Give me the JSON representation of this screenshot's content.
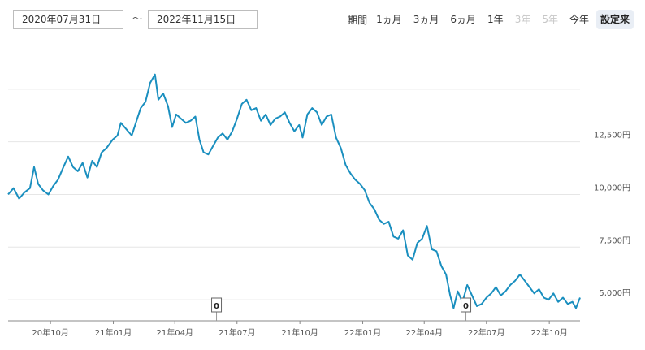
{
  "range": {
    "from": "2020年07月31日",
    "separator": "～",
    "to": "2022年11月15日"
  },
  "period": {
    "label": "期間",
    "buttons": [
      {
        "label": "1ヵ月",
        "state": "normal"
      },
      {
        "label": "3ヵ月",
        "state": "normal"
      },
      {
        "label": "6ヵ月",
        "state": "normal"
      },
      {
        "label": "1年",
        "state": "normal"
      },
      {
        "label": "3年",
        "state": "disabled"
      },
      {
        "label": "5年",
        "state": "disabled"
      },
      {
        "label": "今年",
        "state": "normal"
      },
      {
        "label": "設定来",
        "state": "active"
      }
    ]
  },
  "colors": {
    "line": "#1a8fbf",
    "grid": "#e6e6e6",
    "axis": "#888888",
    "active_button": "#e9eef5"
  },
  "chart_data": {
    "type": "line",
    "x_range": [
      "2020-07-31",
      "2022-11-15"
    ],
    "y_range": [
      4000,
      17500
    ],
    "x_ticks": [
      {
        "date": "2020-10-01",
        "label": "20年10月"
      },
      {
        "date": "2021-01-01",
        "label": "21年01月"
      },
      {
        "date": "2021-04-01",
        "label": "21年04月"
      },
      {
        "date": "2021-07-01",
        "label": "21年07月"
      },
      {
        "date": "2021-10-01",
        "label": "21年10月"
      },
      {
        "date": "2022-01-01",
        "label": "22年01月"
      },
      {
        "date": "2022-04-01",
        "label": "22年04月"
      },
      {
        "date": "2022-07-01",
        "label": "22年07月"
      },
      {
        "date": "2022-10-01",
        "label": "22年10月"
      }
    ],
    "y_ticks": [
      {
        "value": 5000,
        "label": "5,000円"
      },
      {
        "value": 7500,
        "label": "7,500円"
      },
      {
        "value": 10000,
        "label": "10,000円"
      },
      {
        "value": 12500,
        "label": "12,500円"
      },
      {
        "value": 15000,
        "label": ""
      }
    ],
    "markers": [
      {
        "date": "2021-06-01",
        "label": "0"
      },
      {
        "date": "2022-06-01",
        "label": "0"
      }
    ],
    "series": [
      {
        "points": [
          [
            "2020-07-31",
            10000
          ],
          [
            "2020-08-08",
            10300
          ],
          [
            "2020-08-16",
            9800
          ],
          [
            "2020-08-24",
            10100
          ],
          [
            "2020-09-01",
            10300
          ],
          [
            "2020-09-07",
            11300
          ],
          [
            "2020-09-13",
            10500
          ],
          [
            "2020-09-20",
            10200
          ],
          [
            "2020-09-28",
            10000
          ],
          [
            "2020-10-05",
            10400
          ],
          [
            "2020-10-12",
            10700
          ],
          [
            "2020-10-20",
            11300
          ],
          [
            "2020-10-27",
            11800
          ],
          [
            "2020-11-03",
            11300
          ],
          [
            "2020-11-10",
            11100
          ],
          [
            "2020-11-17",
            11500
          ],
          [
            "2020-11-24",
            10800
          ],
          [
            "2020-12-01",
            11600
          ],
          [
            "2020-12-08",
            11300
          ],
          [
            "2020-12-15",
            12000
          ],
          [
            "2020-12-22",
            12200
          ],
          [
            "2020-12-31",
            12600
          ],
          [
            "2021-01-07",
            12800
          ],
          [
            "2021-01-12",
            13400
          ],
          [
            "2021-01-20",
            13100
          ],
          [
            "2021-01-28",
            12800
          ],
          [
            "2021-02-04",
            13500
          ],
          [
            "2021-02-10",
            14100
          ],
          [
            "2021-02-17",
            14400
          ],
          [
            "2021-02-24",
            15300
          ],
          [
            "2021-03-03",
            15700
          ],
          [
            "2021-03-08",
            14500
          ],
          [
            "2021-03-15",
            14800
          ],
          [
            "2021-03-22",
            14200
          ],
          [
            "2021-03-28",
            13200
          ],
          [
            "2021-04-03",
            13800
          ],
          [
            "2021-04-10",
            13600
          ],
          [
            "2021-04-17",
            13400
          ],
          [
            "2021-04-24",
            13500
          ],
          [
            "2021-05-01",
            13700
          ],
          [
            "2021-05-07",
            12600
          ],
          [
            "2021-05-13",
            12000
          ],
          [
            "2021-05-20",
            11900
          ],
          [
            "2021-05-27",
            12300
          ],
          [
            "2021-06-03",
            12700
          ],
          [
            "2021-06-10",
            12900
          ],
          [
            "2021-06-17",
            12600
          ],
          [
            "2021-06-24",
            13000
          ],
          [
            "2021-07-01",
            13600
          ],
          [
            "2021-07-08",
            14300
          ],
          [
            "2021-07-15",
            14500
          ],
          [
            "2021-07-22",
            14000
          ],
          [
            "2021-07-29",
            14100
          ],
          [
            "2021-08-05",
            13500
          ],
          [
            "2021-08-12",
            13800
          ],
          [
            "2021-08-19",
            13300
          ],
          [
            "2021-08-26",
            13600
          ],
          [
            "2021-09-02",
            13700
          ],
          [
            "2021-09-09",
            13900
          ],
          [
            "2021-09-16",
            13400
          ],
          [
            "2021-09-23",
            13000
          ],
          [
            "2021-09-30",
            13300
          ],
          [
            "2021-10-05",
            12700
          ],
          [
            "2021-10-12",
            13800
          ],
          [
            "2021-10-19",
            14100
          ],
          [
            "2021-10-26",
            13900
          ],
          [
            "2021-11-02",
            13300
          ],
          [
            "2021-11-09",
            13700
          ],
          [
            "2021-11-16",
            13800
          ],
          [
            "2021-11-23",
            12700
          ],
          [
            "2021-11-30",
            12200
          ],
          [
            "2021-12-07",
            11400
          ],
          [
            "2021-12-14",
            11000
          ],
          [
            "2021-12-21",
            10700
          ],
          [
            "2021-12-28",
            10500
          ],
          [
            "2022-01-04",
            10200
          ],
          [
            "2022-01-11",
            9600
          ],
          [
            "2022-01-18",
            9300
          ],
          [
            "2022-01-25",
            8800
          ],
          [
            "2022-02-01",
            8600
          ],
          [
            "2022-02-08",
            8700
          ],
          [
            "2022-02-15",
            8000
          ],
          [
            "2022-02-22",
            7900
          ],
          [
            "2022-03-01",
            8300
          ],
          [
            "2022-03-08",
            7100
          ],
          [
            "2022-03-15",
            6900
          ],
          [
            "2022-03-22",
            7700
          ],
          [
            "2022-03-29",
            7900
          ],
          [
            "2022-04-05",
            8500
          ],
          [
            "2022-04-12",
            7400
          ],
          [
            "2022-04-19",
            7300
          ],
          [
            "2022-04-26",
            6600
          ],
          [
            "2022-05-03",
            6200
          ],
          [
            "2022-05-09",
            5200
          ],
          [
            "2022-05-14",
            4600
          ],
          [
            "2022-05-20",
            5400
          ],
          [
            "2022-05-27",
            4900
          ],
          [
            "2022-06-03",
            5700
          ],
          [
            "2022-06-10",
            5200
          ],
          [
            "2022-06-17",
            4700
          ],
          [
            "2022-06-24",
            4800
          ],
          [
            "2022-07-01",
            5100
          ],
          [
            "2022-07-08",
            5300
          ],
          [
            "2022-07-15",
            5600
          ],
          [
            "2022-07-22",
            5200
          ],
          [
            "2022-07-29",
            5400
          ],
          [
            "2022-08-05",
            5700
          ],
          [
            "2022-08-12",
            5900
          ],
          [
            "2022-08-19",
            6200
          ],
          [
            "2022-08-26",
            5900
          ],
          [
            "2022-09-02",
            5600
          ],
          [
            "2022-09-09",
            5300
          ],
          [
            "2022-09-16",
            5500
          ],
          [
            "2022-09-23",
            5100
          ],
          [
            "2022-09-30",
            5000
          ],
          [
            "2022-10-07",
            5300
          ],
          [
            "2022-10-14",
            4900
          ],
          [
            "2022-10-21",
            5100
          ],
          [
            "2022-10-28",
            4800
          ],
          [
            "2022-11-04",
            4900
          ],
          [
            "2022-11-09",
            4600
          ],
          [
            "2022-11-15",
            5100
          ]
        ]
      }
    ]
  }
}
